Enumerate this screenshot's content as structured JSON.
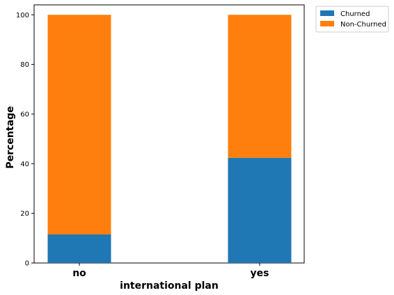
{
  "chart_data": {
    "type": "bar",
    "stacked": true,
    "xlabel": "international plan",
    "ylabel": "Percentage",
    "categories": [
      "no",
      "yes"
    ],
    "series": [
      {
        "name": "Churned",
        "values": [
          11.5,
          42.4
        ],
        "color": "#1f77b4"
      },
      {
        "name": "Non-Churned",
        "values": [
          88.5,
          57.6
        ],
        "color": "#ff7f0e"
      }
    ],
    "ylim": [
      0,
      104
    ],
    "yticks": [
      0,
      20,
      40,
      60,
      80,
      100
    ],
    "grid": false,
    "legend_position": "outside-top-right"
  }
}
